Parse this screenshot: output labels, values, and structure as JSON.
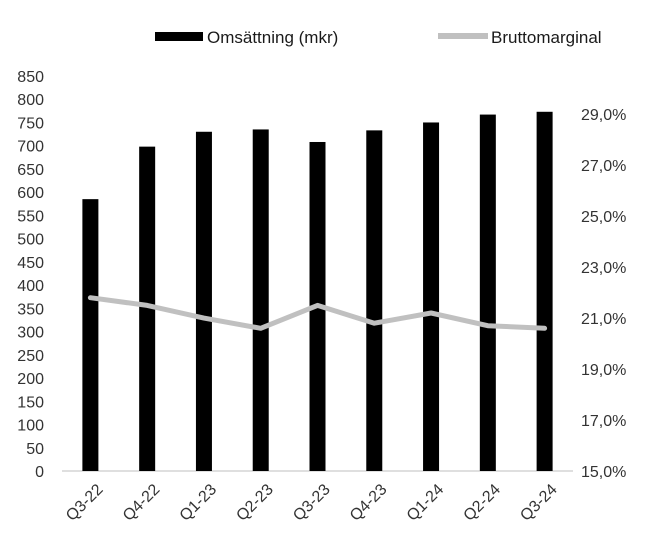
{
  "chart_data": {
    "type": "bar",
    "categories": [
      "Q3-22",
      "Q4-22",
      "Q1-23",
      "Q2-23",
      "Q3-23",
      "Q4-23",
      "Q1-24",
      "Q2-24",
      "Q3-24"
    ],
    "series": [
      {
        "name": "Omsättning (mkr)",
        "type": "bar",
        "axis": "left",
        "color": "#000000",
        "values": [
          585,
          698,
          730,
          735,
          708,
          733,
          750,
          767,
          773
        ]
      },
      {
        "name": "Bruttomarginal",
        "type": "line",
        "axis": "right",
        "color": "#c0c0c0",
        "values": [
          21.8,
          21.5,
          21.0,
          20.6,
          21.5,
          20.8,
          21.2,
          20.7,
          20.6
        ]
      }
    ],
    "y_left": {
      "ylim": [
        0,
        850
      ],
      "ticks": [
        "0",
        "50",
        "100",
        "150",
        "200",
        "250",
        "300",
        "350",
        "400",
        "450",
        "500",
        "550",
        "600",
        "650",
        "700",
        "750",
        "800",
        "850"
      ]
    },
    "y_right": {
      "ylim": [
        15.0,
        30.5
      ],
      "tick_values": [
        15,
        17,
        19,
        21,
        23,
        25,
        27,
        29
      ],
      "ticks": [
        "15,0%",
        "17,0%",
        "19,0%",
        "21,0%",
        "23,0%",
        "25,0%",
        "27,0%",
        "29,0%"
      ]
    },
    "legend_position": "top",
    "grid": false
  }
}
